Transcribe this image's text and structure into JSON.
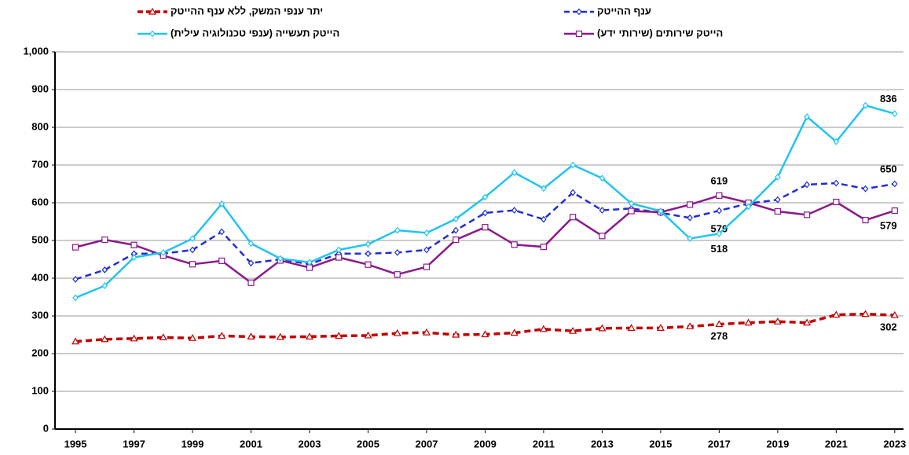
{
  "chart_data": {
    "type": "line",
    "x": [
      1995,
      1996,
      1997,
      1998,
      1999,
      2000,
      2001,
      2002,
      2003,
      2004,
      2005,
      2006,
      2007,
      2008,
      2009,
      2010,
      2011,
      2012,
      2013,
      2014,
      2015,
      2016,
      2017,
      2018,
      2019,
      2020,
      2021,
      2022,
      2023
    ],
    "xlim": [
      1994.3,
      2023.3
    ],
    "xticks": [
      1995,
      1997,
      1999,
      2001,
      2003,
      2005,
      2007,
      2009,
      2011,
      2013,
      2015,
      2017,
      2019,
      2021,
      2023
    ],
    "ylim": [
      0,
      1000
    ],
    "yticks": [
      0,
      100,
      200,
      300,
      400,
      500,
      600,
      700,
      800,
      900,
      {
        "value": 1000,
        "label": "1,000"
      }
    ],
    "grid": true,
    "series": [
      {
        "name": "ענף ההייטק",
        "color": "#1f2fd0",
        "dash": true,
        "marker": "diamond",
        "values": [
          397,
          422,
          465,
          465,
          475,
          523,
          440,
          450,
          437,
          465,
          465,
          468,
          475,
          527,
          573,
          580,
          556,
          627,
          580,
          585,
          573,
          560,
          579,
          598,
          608,
          648,
          652,
          637,
          650
        ],
        "value_labels": [
          null,
          null,
          null,
          null,
          null,
          null,
          null,
          null,
          null,
          null,
          null,
          null,
          null,
          null,
          null,
          null,
          null,
          null,
          null,
          null,
          null,
          null,
          "579",
          null,
          null,
          null,
          null,
          null,
          "650"
        ]
      },
      {
        "name": "יתר ענפי המשק, ללא ענף ההייטק",
        "color": "#c00000",
        "dash": true,
        "marker": "triangle",
        "values": [
          232,
          238,
          240,
          243,
          241,
          247,
          245,
          244,
          245,
          247,
          248,
          254,
          256,
          250,
          251,
          255,
          265,
          260,
          267,
          268,
          268,
          272,
          278,
          282,
          285,
          282,
          303,
          305,
          302
        ],
        "value_labels": [
          null,
          null,
          null,
          null,
          null,
          null,
          null,
          null,
          null,
          null,
          null,
          null,
          null,
          null,
          null,
          null,
          null,
          null,
          null,
          null,
          null,
          null,
          "278",
          null,
          null,
          null,
          null,
          null,
          "302"
        ]
      },
      {
        "name": "הייטק שירותים (שירותי ידע)",
        "color": "#8b1a8b",
        "dash": false,
        "marker": "square",
        "values": [
          482,
          502,
          488,
          460,
          437,
          446,
          388,
          447,
          428,
          455,
          436,
          410,
          430,
          502,
          535,
          489,
          483,
          562,
          512,
          578,
          575,
          595,
          619,
          600,
          577,
          568,
          602,
          554,
          579
        ],
        "value_labels": [
          null,
          null,
          null,
          null,
          null,
          null,
          null,
          null,
          null,
          null,
          null,
          null,
          null,
          null,
          null,
          null,
          null,
          null,
          null,
          null,
          null,
          null,
          "619",
          null,
          null,
          null,
          null,
          null,
          "579"
        ]
      },
      {
        "name": "הייטק תעשייה (ענפי טכנולוגיה עילית)",
        "color": "#22c4ee",
        "label_color": "#000000",
        "dash": false,
        "marker": "diamond",
        "values": [
          348,
          380,
          455,
          468,
          505,
          597,
          492,
          452,
          442,
          475,
          490,
          527,
          520,
          557,
          615,
          680,
          638,
          700,
          665,
          598,
          578,
          505,
          518,
          590,
          668,
          828,
          762,
          858,
          836
        ],
        "value_labels": [
          null,
          null,
          null,
          null,
          null,
          null,
          null,
          null,
          null,
          null,
          null,
          null,
          null,
          null,
          null,
          null,
          null,
          null,
          null,
          null,
          null,
          null,
          "518",
          null,
          null,
          null,
          null,
          null,
          "836"
        ]
      }
    ]
  }
}
